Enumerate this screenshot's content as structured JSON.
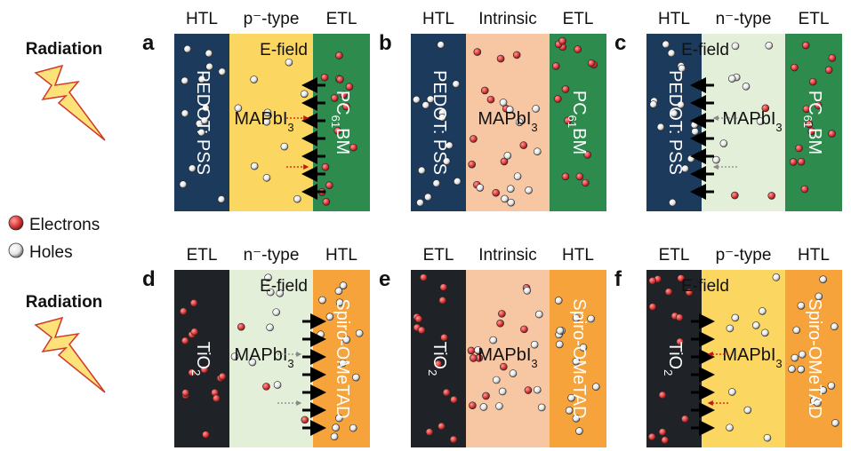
{
  "side": {
    "radiation_label": "Radiation",
    "legend": [
      {
        "label": "Electrons",
        "icon": "electron-icon",
        "color": "#e04040"
      },
      {
        "label": "Holes",
        "icon": "hole-icon",
        "color": "#ffffff"
      }
    ]
  },
  "colors": {
    "pedot": "#1b3a5c",
    "pcbm": "#2e8b4e",
    "tio2": "#1f2328",
    "spiro": "#f5a33a",
    "p_type": "#fbd762",
    "intrinsic": "#f7c6a3",
    "n_type": "#e3efd8",
    "electron": "#e04040",
    "hole": "#ffffff",
    "arrow": "#000000",
    "bolt_fill": "#fde27a",
    "bolt_stroke": "#d03a2a"
  },
  "panels": [
    {
      "letter": "a",
      "arrow_dir": "left",
      "arrow_side": "right",
      "headers": {
        "left": "HTL",
        "mid": "p⁻-type",
        "right": "ETL"
      },
      "left_label": "PEDOT: PSS",
      "right_label": "PC61BM",
      "right_label_main": "PC",
      "right_label_sub": "61",
      "right_label_tail": "BM",
      "mid_label_main": "MAPbI",
      "mid_label_sub": "3",
      "efield_label": "E-field",
      "left_color": "pedot",
      "mid_color": "p_type",
      "right_color": "pcbm",
      "left_text_rot": 90,
      "right_text_rot": 90
    },
    {
      "letter": "b",
      "arrow_dir": "none",
      "arrow_side": "none",
      "headers": {
        "left": "HTL",
        "mid": "Intrinsic",
        "right": "ETL"
      },
      "left_label": "PEDOT: PSS",
      "right_label": "PC61BM",
      "right_label_main": "PC",
      "right_label_sub": "61",
      "right_label_tail": "BM",
      "mid_label_main": "MAPbI",
      "mid_label_sub": "3",
      "efield_label": "",
      "left_color": "pedot",
      "mid_color": "intrinsic",
      "right_color": "pcbm",
      "left_text_rot": 90,
      "right_text_rot": 90
    },
    {
      "letter": "c",
      "arrow_dir": "left",
      "arrow_side": "left",
      "headers": {
        "left": "HTL",
        "mid": "n⁻-type",
        "right": "ETL"
      },
      "left_label": "PEDOT: PSS",
      "right_label": "PC61BM",
      "right_label_main": "PC",
      "right_label_sub": "61",
      "right_label_tail": "BM",
      "mid_label_main": "MAPbI",
      "mid_label_sub": "3",
      "efield_label": "E-field",
      "left_color": "pedot",
      "mid_color": "n_type",
      "right_color": "pcbm",
      "left_text_rot": 90,
      "right_text_rot": 90
    },
    {
      "letter": "d",
      "arrow_dir": "right",
      "arrow_side": "right",
      "headers": {
        "left": "ETL",
        "mid": "n⁻-type",
        "right": "HTL"
      },
      "left_label": "TiO2",
      "left_label_main": "TiO",
      "left_label_sub": "2",
      "right_label": "Spiro-OMeTAD",
      "mid_label_main": "MAPbI",
      "mid_label_sub": "3",
      "efield_label": "E-field",
      "left_color": "tio2",
      "mid_color": "n_type",
      "right_color": "spiro",
      "left_text_rot": 90,
      "right_text_rot": 90
    },
    {
      "letter": "e",
      "arrow_dir": "none",
      "arrow_side": "none",
      "headers": {
        "left": "ETL",
        "mid": "Intrinsic",
        "right": "HTL"
      },
      "left_label": "TiO2",
      "left_label_main": "TiO",
      "left_label_sub": "2",
      "right_label": "Spiro-OMeTAD",
      "mid_label_main": "MAPbI",
      "mid_label_sub": "3",
      "efield_label": "",
      "left_color": "tio2",
      "mid_color": "intrinsic",
      "right_color": "spiro",
      "left_text_rot": 90,
      "right_text_rot": 90
    },
    {
      "letter": "f",
      "arrow_dir": "right",
      "arrow_side": "left",
      "headers": {
        "left": "ETL",
        "mid": "p⁻-type",
        "right": "HTL"
      },
      "left_label": "TiO2",
      "left_label_main": "TiO",
      "left_label_sub": "2",
      "right_label": "Spiro-OMeTAD",
      "mid_label_main": "MAPbI",
      "mid_label_sub": "3",
      "efield_label": "E-field",
      "left_color": "tio2",
      "mid_color": "p_type",
      "right_color": "spiro",
      "left_text_rot": 90,
      "right_text_rot": 90
    }
  ]
}
